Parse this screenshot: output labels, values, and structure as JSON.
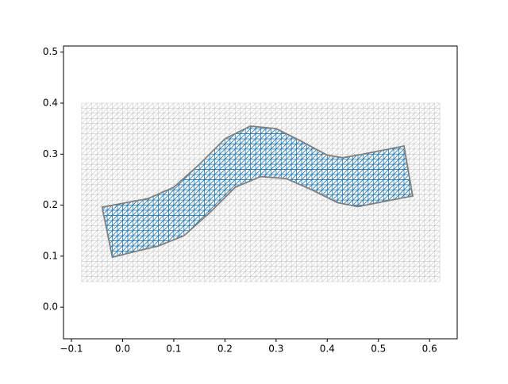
{
  "chart_data": {
    "type": "mesh",
    "xlim": [
      -0.1155,
      0.654
    ],
    "ylim": [
      -0.062,
      0.512
    ],
    "xticks": [
      {
        "value": -0.1,
        "label": "−0.1"
      },
      {
        "value": 0,
        "label": "0.0"
      },
      0.1,
      0.2,
      0.3,
      0.4,
      0.5,
      0.6
    ],
    "yticks": [
      {
        "value": 0,
        "label": "0.0"
      },
      0.1,
      0.2,
      0.3,
      0.4,
      0.5
    ],
    "mesh": {
      "xlim": [
        -0.08,
        0.62
      ],
      "ylim": [
        0.05,
        0.4
      ],
      "xstep": 0.01,
      "ystep": 0.01,
      "color": "#c8c8c8",
      "inner_color": "#1f77b4"
    },
    "outline": {
      "color": "#808080",
      "x": [
        -0.04,
        0.05,
        0.1,
        0.15,
        0.2,
        0.25,
        0.3,
        0.35,
        0.4,
        0.43,
        0.47,
        0.55,
        0.567,
        0.5,
        0.46,
        0.42,
        0.37,
        0.32,
        0.27,
        0.22,
        0.17,
        0.12,
        0.07,
        0.02,
        -0.02
      ],
      "y": [
        0.196,
        0.213,
        0.235,
        0.28,
        0.33,
        0.355,
        0.35,
        0.325,
        0.298,
        0.293,
        0.3,
        0.316,
        0.218,
        0.205,
        0.197,
        0.205,
        0.23,
        0.252,
        0.256,
        0.235,
        0.185,
        0.14,
        0.12,
        0.108,
        0.098
      ]
    }
  }
}
